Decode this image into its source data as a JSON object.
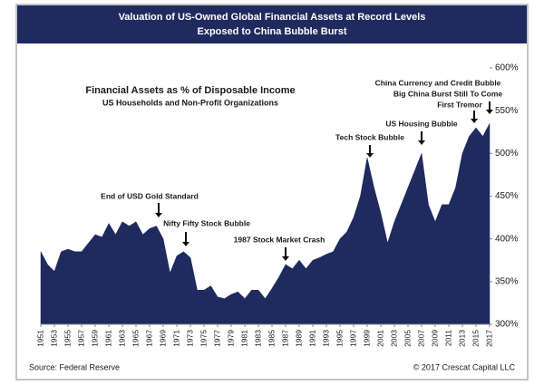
{
  "chart_data": {
    "type": "area",
    "title": [
      "Valuation of US-Owned Global Financial Assets at Record Levels",
      "Exposed to China Bubble Burst"
    ],
    "subtitle": [
      "Financial Assets as % of Disposable Income",
      "US Households and Non-Profit Organizations"
    ],
    "source": "Source: Federal Reserve",
    "credit": "© 2017 Crescat Capital LLC",
    "color": "#1f2a5e",
    "x": [
      1951,
      1952,
      1953,
      1954,
      1955,
      1956,
      1957,
      1958,
      1959,
      1960,
      1961,
      1962,
      1963,
      1964,
      1965,
      1966,
      1967,
      1968,
      1969,
      1970,
      1971,
      1972,
      1973,
      1974,
      1975,
      1976,
      1977,
      1978,
      1979,
      1980,
      1981,
      1982,
      1983,
      1984,
      1985,
      1986,
      1987,
      1988,
      1989,
      1990,
      1991,
      1992,
      1993,
      1994,
      1995,
      1996,
      1997,
      1998,
      1999,
      2000,
      2001,
      2002,
      2003,
      2004,
      2005,
      2006,
      2007,
      2008,
      2009,
      2010,
      2011,
      2012,
      2013,
      2014,
      2015,
      2016,
      2017
    ],
    "values": [
      385,
      370,
      362,
      385,
      388,
      385,
      385,
      395,
      405,
      402,
      418,
      405,
      420,
      415,
      420,
      405,
      412,
      415,
      400,
      360,
      380,
      385,
      378,
      340,
      340,
      345,
      332,
      330,
      335,
      338,
      330,
      340,
      340,
      330,
      342,
      355,
      370,
      365,
      375,
      365,
      375,
      378,
      382,
      385,
      400,
      408,
      425,
      450,
      495,
      460,
      430,
      395,
      420,
      440,
      460,
      480,
      500,
      440,
      420,
      440,
      440,
      460,
      500,
      520,
      530,
      520,
      535
    ],
    "xlim": [
      1951,
      2017
    ],
    "xticks": [
      1951,
      1953,
      1955,
      1957,
      1959,
      1961,
      1963,
      1965,
      1967,
      1969,
      1971,
      1973,
      1975,
      1977,
      1979,
      1981,
      1983,
      1985,
      1987,
      1989,
      1991,
      1993,
      1995,
      1997,
      1999,
      2001,
      2003,
      2005,
      2007,
      2009,
      2011,
      2013,
      2015,
      2017
    ],
    "ylim": [
      300,
      600
    ],
    "yticks": [
      {
        "value": 300,
        "label": "300%"
      },
      {
        "value": 350,
        "label": "350%"
      },
      {
        "value": 400,
        "label": "400%"
      },
      {
        "value": 450,
        "label": "450%"
      },
      {
        "value": 500,
        "label": "500%"
      },
      {
        "value": 550,
        "label": "550%"
      },
      {
        "value": 600,
        "label": "600%"
      }
    ],
    "annotations": [
      "End of USD Gold Standard",
      "Nifty Fifty Stock Bubble",
      "1987 Stock Market Crash",
      "Tech Stock Bubble",
      "US Housing Bubble",
      "China Currency and Credit Bubble",
      "Big China Burst Still To Come",
      "First Tremor"
    ]
  }
}
